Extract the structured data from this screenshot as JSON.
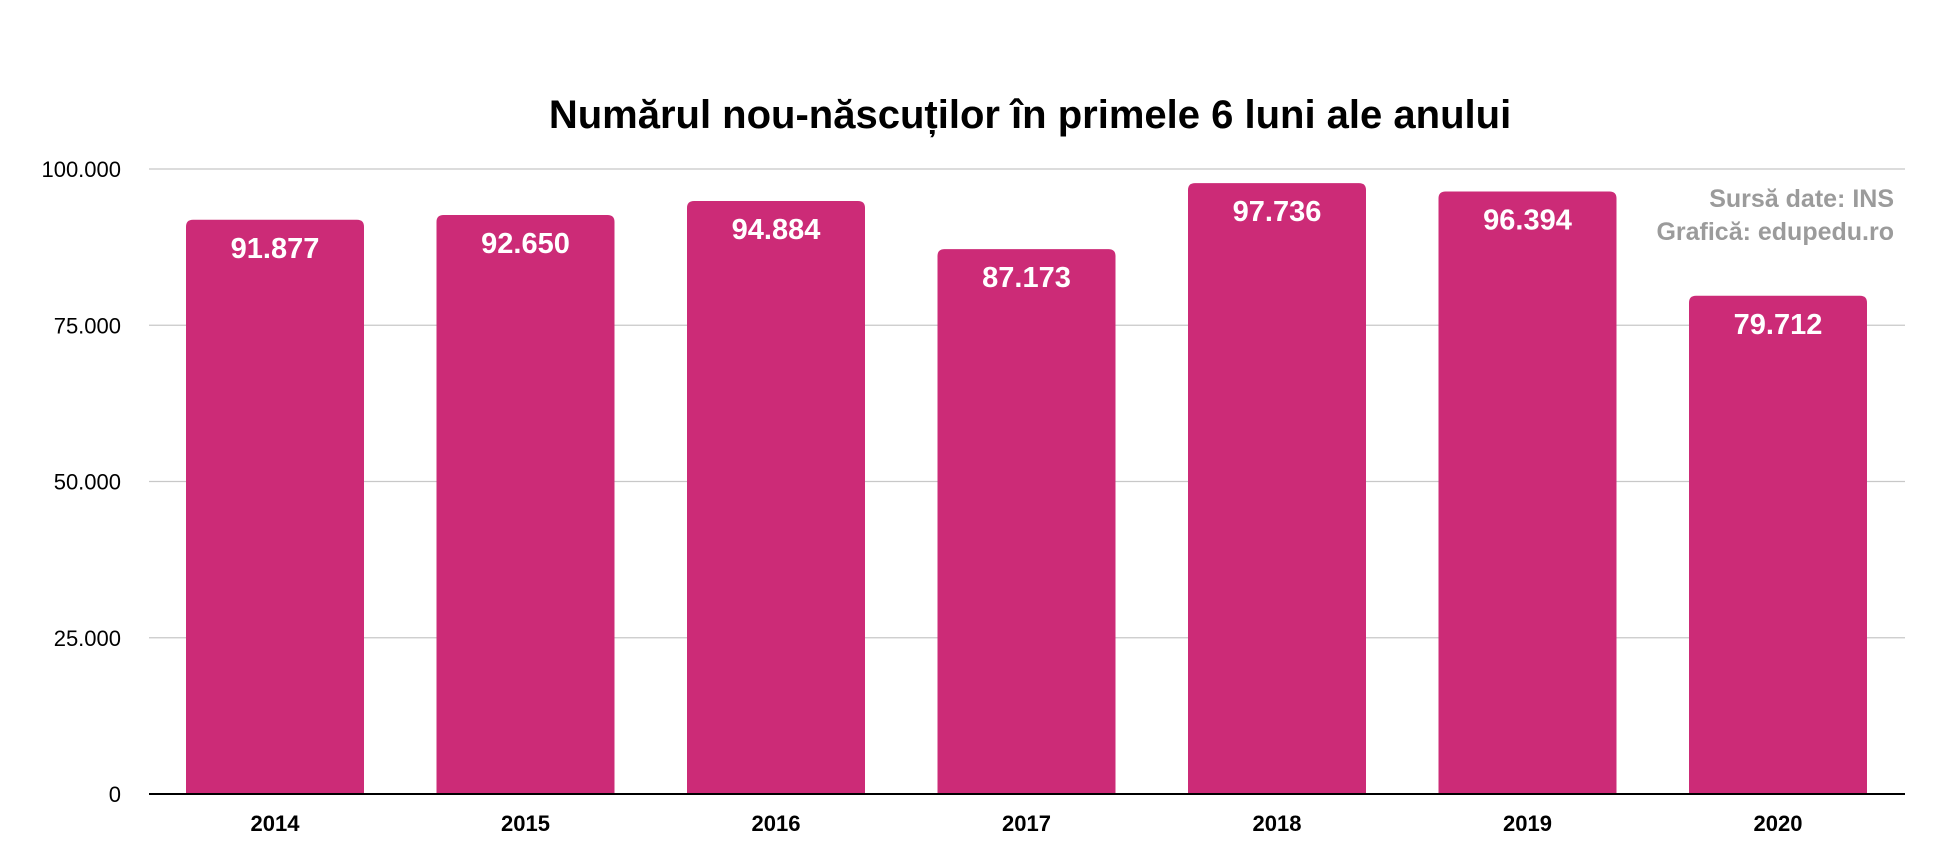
{
  "chart_data": {
    "type": "bar",
    "title": "Numărul nou-născuților în primele 6 luni ale anului",
    "categories": [
      "2014",
      "2015",
      "2016",
      "2017",
      "2018",
      "2019",
      "2020"
    ],
    "values": [
      91877,
      92650,
      94884,
      87173,
      97736,
      96394,
      79712
    ],
    "value_labels": [
      "91.877",
      "92.650",
      "94.884",
      "87.173",
      "97.736",
      "96.394",
      "79.712"
    ],
    "y_ticks": [
      0,
      25000,
      50000,
      75000,
      100000
    ],
    "y_tick_labels": [
      "0",
      "25.000",
      "50.000",
      "75.000",
      "100.000"
    ],
    "ylim": [
      0,
      100000
    ],
    "xlabel": "",
    "ylabel": "",
    "grid": true,
    "legend": "none",
    "annotations": [
      "Sursă date: INS",
      "Grafică: edupedu.ro"
    ],
    "colors": {
      "bar": "#cc2b77",
      "grid": "#c8c8c8",
      "axis": "#000000",
      "annotation": "#9b9b9b",
      "value_label": "#ffffff"
    }
  }
}
